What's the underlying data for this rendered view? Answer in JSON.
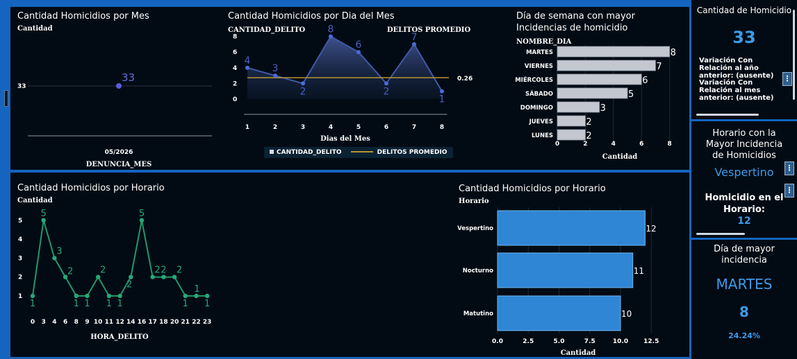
{
  "panel_month": {
    "title": "Cantidad Homicidios por Mes",
    "ylabel": "Cantidad",
    "xlabel": "DENUNCIA_MES",
    "ytick": "33",
    "xtick": "05/2026",
    "point_label": "33"
  },
  "panel_day": {
    "title": "Cantidad Homicidios por Dia del Mes",
    "ylabel": "CANTIDAD_DELITO",
    "y2label": "DELITOS PROMEDIO",
    "xlabel": "Dias del Mes",
    "avg_label": "0.26",
    "legend_series": "CANTIDAD_DELITO",
    "legend_avg": "DELITOS PROMEDIO"
  },
  "panel_weekday": {
    "title_line1": "Día de semana con mayor",
    "title_line2": "Incidencias de homicidio",
    "ylabel": "NOMBRE_DIA",
    "xlabel": "Cantidad"
  },
  "panel_hour": {
    "title": "Cantidad Homicidios por Horario",
    "ylabel": "Cantidad",
    "xlabel": "HORA_DELITO"
  },
  "panel_shift": {
    "title": "Cantidad Homicidios por Horario",
    "ylabel": "Horario",
    "xlabel": "Cantidad"
  },
  "kpi_total": {
    "title": "Cantidad de Homicidio",
    "value": "33",
    "var_year": "Variación Con Relación al año anterior:  (ausente)",
    "var_month": "Variación Con Relación al mes anterior: (ausente)"
  },
  "kpi_shift": {
    "title": "Horario con la Mayor Incidencia de Homicidios",
    "value": "Vespertino",
    "sub_label": "Homicidio en el Horario:",
    "sub_value": "12"
  },
  "kpi_day": {
    "title": "Día de mayor incidencia",
    "value": "MARTES",
    "count": "8",
    "pct": "24.24%"
  },
  "colors": {
    "accent": "#3d9be9",
    "panel_bg": "#020b14",
    "line_green": "#1e9a6a",
    "area_blue": "#3d5a9e",
    "avg_gold": "#b8962e",
    "bar_blue": "#2f86d4",
    "bar_gray": "#c3c7d0"
  },
  "chart_data": [
    {
      "type": "scatter",
      "title": "Cantidad Homicidios por Mes",
      "xlabel": "DENUNCIA_MES",
      "ylabel": "Cantidad",
      "categories": [
        "05/2026"
      ],
      "values": [
        33
      ],
      "yticks": [
        33
      ]
    },
    {
      "type": "area",
      "title": "Cantidad Homicidios por Dia del Mes",
      "xlabel": "Dias del Mes",
      "ylabel": "CANTIDAD_DELITO",
      "x": [
        1,
        2,
        3,
        4,
        5,
        6,
        7,
        8
      ],
      "series": [
        {
          "name": "CANTIDAD_DELITO",
          "values": [
            4,
            3,
            2,
            8,
            6,
            2,
            7,
            1
          ]
        },
        {
          "name": "DELITOS PROMEDIO",
          "values": [
            0.26,
            0.26,
            0.26,
            0.26,
            0.26,
            0.26,
            0.26,
            0.26
          ]
        }
      ],
      "ylim": [
        -1,
        9
      ],
      "yticks": [
        0,
        2,
        4,
        6,
        8
      ],
      "legend": "bottom"
    },
    {
      "type": "bar",
      "orientation": "horizontal",
      "title": "Día de semana con mayor Incidencias de homicidio",
      "xlabel": "Cantidad",
      "ylabel": "NOMBRE_DIA",
      "categories": [
        "MARTES",
        "VIERNES",
        "MIÉRCOLES",
        "SÁBADO",
        "DOMINGO",
        "JUEVES",
        "LUNES"
      ],
      "values": [
        8,
        7,
        6,
        5,
        3,
        2,
        2
      ],
      "xlim": [
        0,
        8
      ],
      "xticks": [
        0,
        2,
        4,
        6,
        8
      ]
    },
    {
      "type": "line",
      "title": "Cantidad Homicidios por Horario",
      "xlabel": "HORA_DELITO",
      "ylabel": "Cantidad",
      "categories": [
        "0",
        "3",
        "4",
        "6",
        "8",
        "9",
        "10",
        "11",
        "12",
        "14",
        "16",
        "17",
        "18",
        "20",
        "21",
        "22",
        "23"
      ],
      "values": [
        1,
        5,
        3,
        2,
        1,
        1,
        2,
        1,
        1,
        2,
        5,
        2,
        2,
        2,
        1,
        1,
        1
      ],
      "ylim": [
        0.5,
        5.5
      ],
      "yticks": [
        1,
        2,
        3,
        4,
        5
      ]
    },
    {
      "type": "bar",
      "orientation": "horizontal",
      "title": "Cantidad Homicidios por Horario",
      "xlabel": "Cantidad",
      "ylabel": "Horario",
      "categories": [
        "Vespertino",
        "Nocturno",
        "Matutino"
      ],
      "values": [
        12,
        11,
        10
      ],
      "xlim": [
        0,
        13
      ],
      "xticks": [
        0.0,
        2.5,
        5.0,
        7.5,
        10.0,
        12.5
      ]
    }
  ]
}
